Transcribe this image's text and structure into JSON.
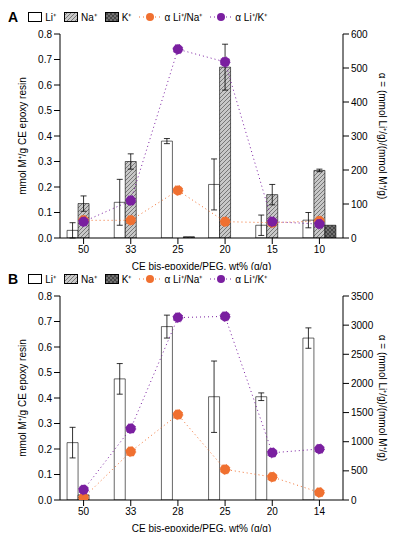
{
  "chart_data": [
    {
      "type": "bar",
      "title": "A",
      "x_label": "CE bis-epoxide/PEG, wt% (g/g)",
      "y_label": "mmol M⁺/g CE epoxy resin",
      "y2_label": "α = (mmol Li⁺/g)/(mmol M⁺/g)",
      "categories": [
        "50",
        "33",
        "25",
        "20",
        "15",
        "10"
      ],
      "ylim": [
        0,
        0.8
      ],
      "yticks": [
        {
          "value": 0,
          "label": "0.0"
        },
        0.1,
        0.2,
        0.3,
        0.4,
        0.5,
        0.6,
        0.7,
        0.8
      ],
      "y2lim": [
        0,
        600
      ],
      "y2ticks": [
        0,
        100,
        200,
        300,
        400,
        500,
        600
      ],
      "legend": "top",
      "series": [
        {
          "name": "Li⁺",
          "color": "#ffffff",
          "values": [
            0.03,
            0.14,
            0.38,
            0.21,
            0.05,
            0.07
          ],
          "errors": [
            0.03,
            0.09,
            0.01,
            0.1,
            0.04,
            0.03
          ]
        },
        {
          "name": "Na⁺",
          "color": "#c8c8c8",
          "values": [
            0.135,
            0.3,
            0.0,
            0.67,
            0.17,
            0.265
          ],
          "errors": [
            0.03,
            0.03,
            0,
            0.09,
            0.04,
            0.005
          ]
        },
        {
          "name": "K⁺",
          "color": "#707070",
          "values": [
            0,
            0,
            0.005,
            0,
            0,
            0.05
          ]
        },
        {
          "name": "α Li⁺/Na⁺",
          "type": "line",
          "axis": "y2",
          "color": "#f07030",
          "marker": "circle",
          "line_style": "dotted",
          "values": [
            52,
            52,
            140,
            48,
            45,
            50
          ]
        },
        {
          "name": "α Li⁺/K⁺",
          "type": "line",
          "axis": "y2",
          "color": "#7a1fa0",
          "marker": "circle",
          "line_style": "dotted",
          "values": [
            48,
            110,
            555,
            518,
            48,
            41
          ]
        }
      ]
    },
    {
      "type": "bar",
      "title": "B",
      "x_label": "CE bis-epoxide/PEG, wt% (g/g)",
      "y_label": "mmol M⁺/g CE epoxy resin",
      "y2_label": "α = (mmol Li⁺/g)/(mmol M⁺/g)",
      "categories": [
        "50",
        "33",
        "28",
        "25",
        "20",
        "14"
      ],
      "ylim": [
        0,
        0.8
      ],
      "yticks": [
        {
          "value": 0,
          "label": "0.0"
        },
        0.1,
        0.2,
        0.3,
        0.4,
        0.5,
        0.6,
        0.7,
        0.8
      ],
      "y2lim": [
        0,
        3500
      ],
      "y2ticks": [
        0,
        500,
        1000,
        1500,
        2000,
        2500,
        3000,
        3500
      ],
      "legend": "top",
      "series": [
        {
          "name": "Li⁺",
          "color": "#ffffff",
          "values": [
            0.225,
            0.475,
            0.68,
            0.405,
            0.405,
            0.635
          ],
          "errors": [
            0.06,
            0.06,
            0.045,
            0.14,
            0.015,
            0.04
          ]
        },
        {
          "name": "Na⁺",
          "color": "#c8c8c8",
          "values": [
            0.02,
            0,
            0,
            0,
            0,
            0
          ]
        },
        {
          "name": "K⁺",
          "color": "#707070",
          "values": [
            0,
            0,
            0,
            0,
            0,
            0
          ]
        },
        {
          "name": "α Li⁺/Na⁺",
          "type": "line",
          "axis": "y2",
          "color": "#f07030",
          "marker": "circle",
          "line_style": "dotted",
          "values": [
            40,
            830,
            1465,
            525,
            395,
            130
          ]
        },
        {
          "name": "α Li⁺/K⁺",
          "type": "line",
          "axis": "y2",
          "color": "#7a1fa0",
          "marker": "circle",
          "line_style": "dotted",
          "values": [
            175,
            1225,
            3130,
            3150,
            810,
            875
          ]
        }
      ]
    }
  ]
}
